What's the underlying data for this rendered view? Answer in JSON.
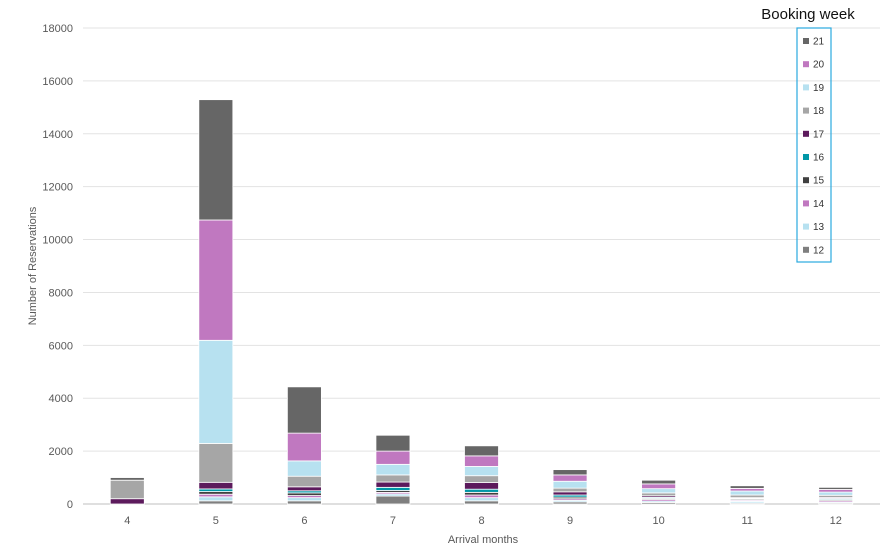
{
  "chart_data": {
    "type": "bar",
    "stacked": true,
    "xlabel": "Arrival months",
    "ylabel": "Number of Reservations",
    "ylim": [
      0,
      18000
    ],
    "yticks": [
      0,
      2000,
      4000,
      6000,
      8000,
      10000,
      12000,
      14000,
      16000,
      18000
    ],
    "grid": true,
    "legend": {
      "title": "Booking week",
      "placement": "top-right"
    },
    "categories": [
      "4",
      "5",
      "6",
      "7",
      "8",
      "9",
      "10",
      "11",
      "12"
    ],
    "series": [
      {
        "name": "12",
        "color": "#7f7f7f",
        "values": [
          0,
          120,
          120,
          300,
          120,
          80,
          60,
          40,
          40
        ]
      },
      {
        "name": "13",
        "color": "#b7e1f0",
        "values": [
          0,
          150,
          120,
          80,
          120,
          60,
          50,
          60,
          40
        ]
      },
      {
        "name": "14",
        "color": "#c078c0",
        "values": [
          0,
          100,
          80,
          60,
          100,
          60,
          60,
          40,
          50
        ]
      },
      {
        "name": "15",
        "color": "#404040",
        "values": [
          0,
          100,
          100,
          70,
          100,
          60,
          40,
          40,
          40
        ]
      },
      {
        "name": "16",
        "color": "#0097a7",
        "values": [
          0,
          100,
          80,
          120,
          120,
          80,
          40,
          30,
          40
        ]
      },
      {
        "name": "17",
        "color": "#5c1a5c",
        "values": [
          200,
          250,
          150,
          200,
          250,
          120,
          60,
          30,
          40
        ]
      },
      {
        "name": "18",
        "color": "#a6a6a6",
        "values": [
          700,
          1470,
          400,
          270,
          260,
          140,
          110,
          100,
          80
        ]
      },
      {
        "name": "19",
        "color": "#b7e1f0",
        "values": [
          0,
          3900,
          580,
          400,
          350,
          260,
          160,
          150,
          120
        ]
      },
      {
        "name": "20",
        "color": "#c078c0",
        "values": [
          0,
          4550,
          1050,
          500,
          400,
          240,
          180,
          100,
          100
        ]
      },
      {
        "name": "21",
        "color": "#666666",
        "values": [
          100,
          4550,
          1750,
          600,
          380,
          200,
          140,
          100,
          80
        ]
      }
    ]
  }
}
